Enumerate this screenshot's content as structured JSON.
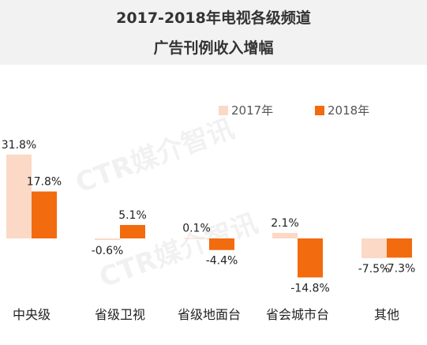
{
  "header": {
    "title_line1": "2017-2018年电视各级频道",
    "title_line2": "广告刊例收入增幅"
  },
  "watermark": "CTR媒介智讯",
  "chart_data": {
    "type": "bar",
    "title": "2017-2018年电视各级频道广告刊例收入增幅",
    "categories": [
      "中央级",
      "省级卫视",
      "省级地面台",
      "省会城市台",
      "其他"
    ],
    "series": [
      {
        "name": "2017年",
        "values": [
          31.8,
          -0.6,
          0.1,
          2.1,
          -7.5
        ],
        "labels": [
          "31.8%",
          "-0.6%",
          "0.1%",
          "2.1%",
          "-7.5%"
        ],
        "color": "#fbd9c6"
      },
      {
        "name": "2018年",
        "values": [
          17.8,
          5.1,
          -4.4,
          -14.8,
          -7.3
        ],
        "labels": [
          "17.8%",
          "5.1%",
          "-4.4%",
          "-14.8%",
          "-7.3%"
        ],
        "color": "#f26b0f"
      }
    ],
    "unit": "%",
    "legend": "top-right",
    "grid": false
  }
}
